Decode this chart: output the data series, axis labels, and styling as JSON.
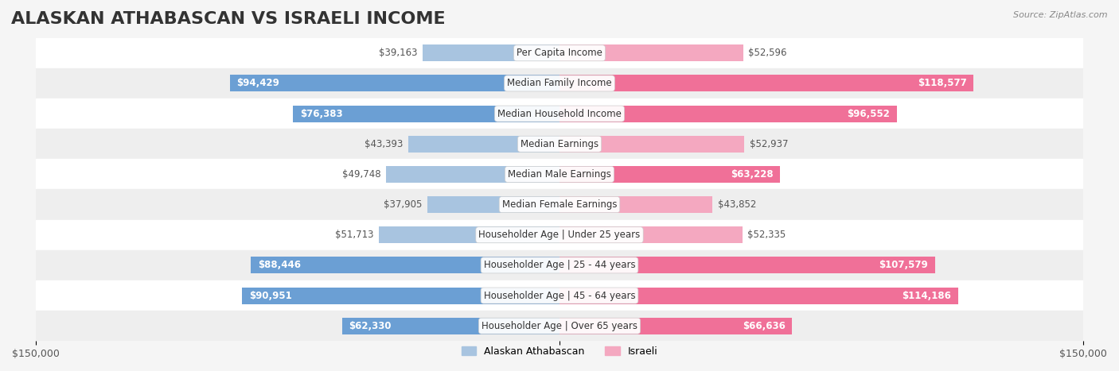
{
  "title": "ALASKAN ATHABASCAN VS ISRAELI INCOME",
  "source": "Source: ZipAtlas.com",
  "categories": [
    "Per Capita Income",
    "Median Family Income",
    "Median Household Income",
    "Median Earnings",
    "Median Male Earnings",
    "Median Female Earnings",
    "Householder Age | Under 25 years",
    "Householder Age | 25 - 44 years",
    "Householder Age | 45 - 64 years",
    "Householder Age | Over 65 years"
  ],
  "alaskan_values": [
    39163,
    94429,
    76383,
    43393,
    49748,
    37905,
    51713,
    88446,
    90951,
    62330
  ],
  "israeli_values": [
    52596,
    118577,
    96552,
    52937,
    63228,
    43852,
    52335,
    107579,
    114186,
    66636
  ],
  "alaskan_labels": [
    "$39,163",
    "$94,429",
    "$76,383",
    "$43,393",
    "$49,748",
    "$37,905",
    "$51,713",
    "$88,446",
    "$90,951",
    "$62,330"
  ],
  "israeli_labels": [
    "$52,596",
    "$118,577",
    "$96,552",
    "$52,937",
    "$63,228",
    "$43,852",
    "$52,335",
    "$107,579",
    "$114,186",
    "$66,636"
  ],
  "max_value": 150000,
  "alaskan_color_light": "#a8c4e0",
  "alaskan_color_dark": "#6b9fd4",
  "israeli_color_light": "#f4a8c0",
  "israeli_color_dark": "#f07098",
  "bar_height": 0.55,
  "background_color": "#f5f5f5",
  "row_bg_light": "#ffffff",
  "row_bg_dark": "#eeeeee",
  "label_inside_color": "#ffffff",
  "label_outside_color": "#555555",
  "title_fontsize": 16,
  "label_fontsize": 8.5,
  "category_fontsize": 8.5,
  "axis_label_fontsize": 9,
  "legend_fontsize": 9
}
